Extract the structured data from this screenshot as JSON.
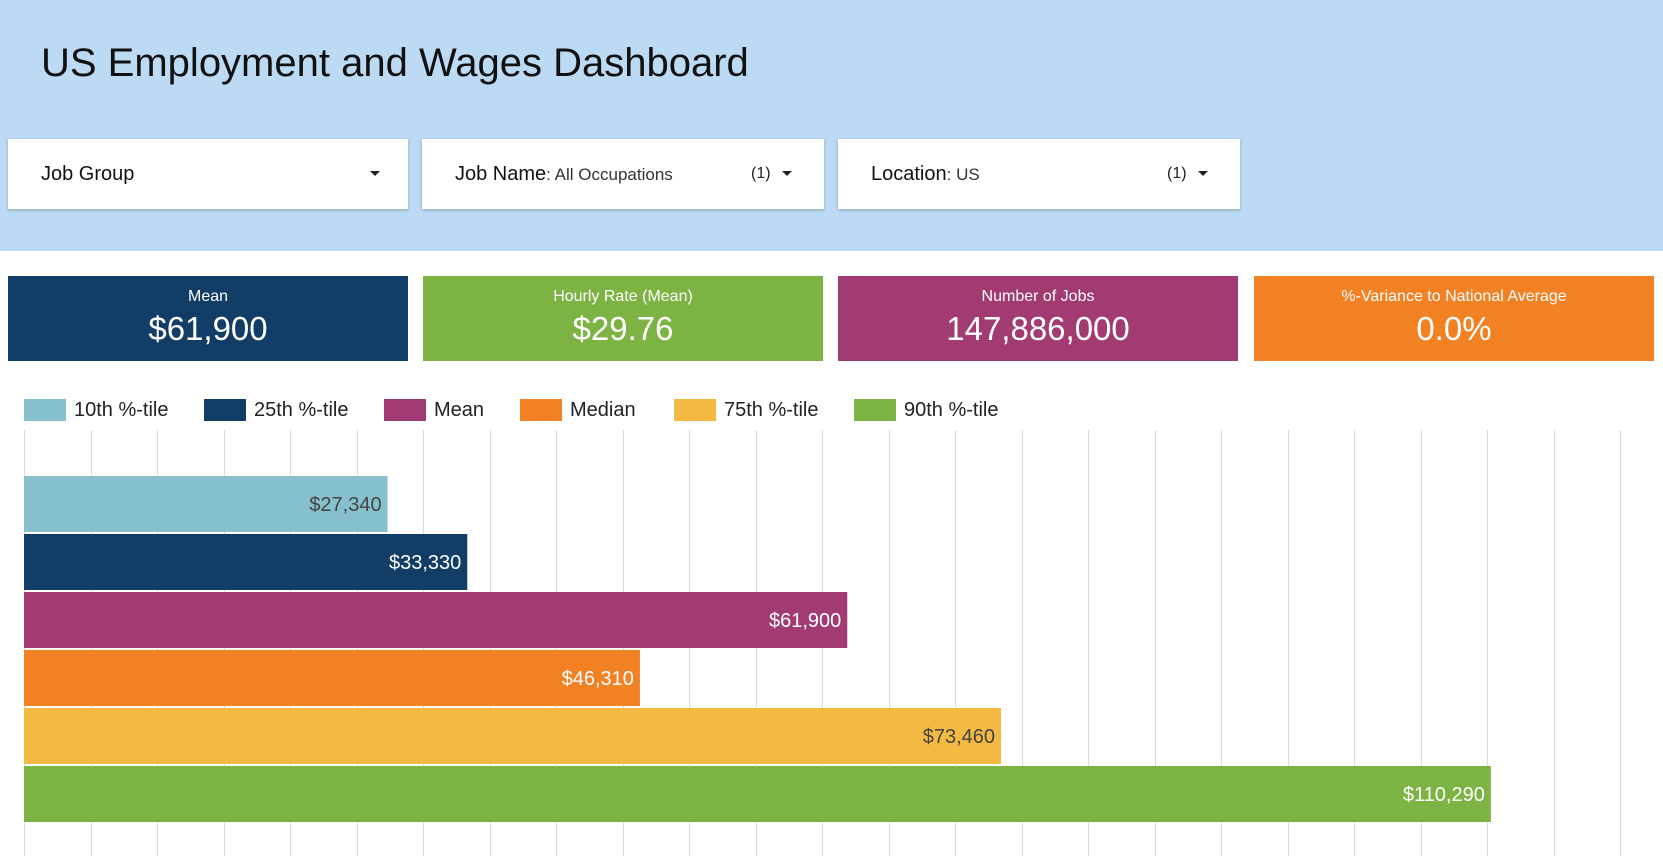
{
  "header": {
    "title": "US Employment and Wages Dashboard"
  },
  "filters": [
    {
      "label": "Job Group",
      "value": "",
      "count": ""
    },
    {
      "label": "Job Name",
      "value": ": All Occupations",
      "count": "(1)"
    },
    {
      "label": "Location",
      "value": ": US",
      "count": "(1)"
    }
  ],
  "kpis": [
    {
      "label": "Mean",
      "value": "$61,900",
      "color": "#123d66"
    },
    {
      "label": "Hourly Rate (Mean)",
      "value": "$29.76",
      "color": "#7cb342"
    },
    {
      "label": "Number of Jobs",
      "value": "147,886,000",
      "color": "#a23b72"
    },
    {
      "label": "%-Variance to National Average",
      "value": "0.0%",
      "color": "#f28123"
    }
  ],
  "chart_data": {
    "type": "bar",
    "orientation": "horizontal",
    "title": "",
    "xlabel": "",
    "ylabel": "",
    "xlim": [
      0,
      122500
    ],
    "grid": true,
    "legend_position": "top-left",
    "series": [
      {
        "name": "10th %-tile",
        "value": 27340,
        "label": "$27,340",
        "color": "#87c0cd",
        "label_color": "#444444"
      },
      {
        "name": "25th %-tile",
        "value": 33330,
        "label": "$33,330",
        "color": "#123d66",
        "label_color": "#ffffff"
      },
      {
        "name": "Mean",
        "value": 61900,
        "label": "$61,900",
        "color": "#a23b72",
        "label_color": "#ffffff"
      },
      {
        "name": "Median",
        "value": 46310,
        "label": "$46,310",
        "color": "#f28123",
        "label_color": "#ffffff"
      },
      {
        "name": "75th %-tile",
        "value": 73460,
        "label": "$73,460",
        "color": "#f4b942",
        "label_color": "#444444"
      },
      {
        "name": "90th %-tile",
        "value": 110290,
        "label": "$110,290",
        "color": "#7cb342",
        "label_color": "#ffffff"
      }
    ]
  }
}
